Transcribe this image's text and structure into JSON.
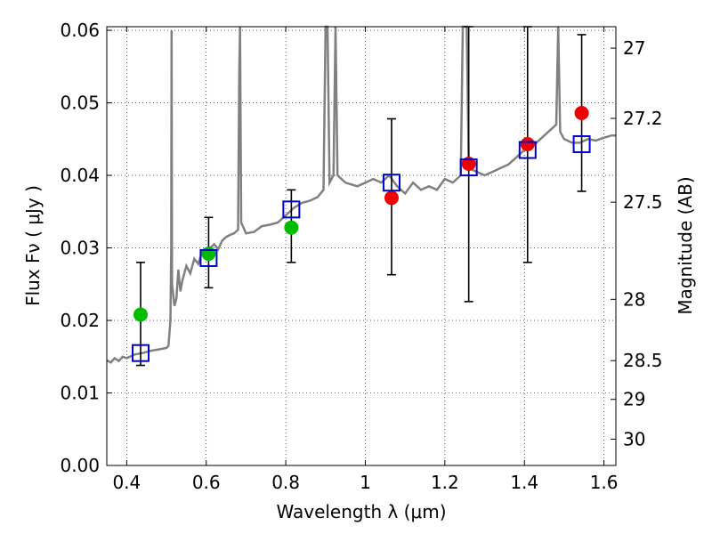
{
  "chart_data": {
    "type": "scatter",
    "xlabel": "Wavelength  λ (μm)",
    "ylabel_left": "Flux  Fν  ( μJy )",
    "ylabel_right": "Magnitude (AB)",
    "xlim": [
      0.35,
      1.63
    ],
    "ylim": [
      0.0,
      0.0605
    ],
    "grid": true,
    "x_ticks": [
      {
        "v": 0.4,
        "label": "0.4"
      },
      {
        "v": 0.6,
        "label": "0.6"
      },
      {
        "v": 0.8,
        "label": "0.8"
      },
      {
        "v": 1.0,
        "label": "1"
      },
      {
        "v": 1.2,
        "label": "1.2"
      },
      {
        "v": 1.4,
        "label": "1.4"
      },
      {
        "v": 1.6,
        "label": "1.6"
      }
    ],
    "y_ticks": [
      {
        "v": 0.0,
        "label": "0.00"
      },
      {
        "v": 0.01,
        "label": "0.01"
      },
      {
        "v": 0.02,
        "label": "0.02"
      },
      {
        "v": 0.03,
        "label": "0.03"
      },
      {
        "v": 0.04,
        "label": "0.04"
      },
      {
        "v": 0.05,
        "label": "0.05"
      },
      {
        "v": 0.06,
        "label": "0.06"
      }
    ],
    "right_ticks": [
      {
        "v": 27,
        "label": "27"
      },
      {
        "v": 27.2,
        "label": "27.2"
      },
      {
        "v": 27.5,
        "label": "27.5"
      },
      {
        "v": 28,
        "label": "28"
      },
      {
        "v": 28.5,
        "label": "28.5"
      },
      {
        "v": 29,
        "label": "29"
      },
      {
        "v": 30,
        "label": "30"
      }
    ],
    "observed_points": [
      {
        "x": 0.435,
        "y": 0.0208,
        "yerr_low": 0.0138,
        "yerr_high": 0.028,
        "color": "#00bb00"
      },
      {
        "x": 0.606,
        "y": 0.0292,
        "yerr_low": 0.0245,
        "yerr_high": 0.0342,
        "color": "#00bb00"
      },
      {
        "x": 0.814,
        "y": 0.0328,
        "yerr_low": 0.028,
        "yerr_high": 0.038,
        "color": "#00bb00"
      },
      {
        "x": 1.066,
        "y": 0.0369,
        "yerr_low": 0.0263,
        "yerr_high": 0.0478,
        "color": "#ee0000"
      },
      {
        "x": 1.26,
        "y": 0.0416,
        "yerr_low": 0.0226,
        "yerr_high": 0.0605,
        "color": "#ee0000"
      },
      {
        "x": 1.408,
        "y": 0.0443,
        "yerr_low": 0.028,
        "yerr_high": 0.0605,
        "color": "#ee0000"
      },
      {
        "x": 1.544,
        "y": 0.0486,
        "yerr_low": 0.0378,
        "yerr_high": 0.0594,
        "color": "#ee0000"
      }
    ],
    "model_points": [
      {
        "x": 0.435,
        "y": 0.0155
      },
      {
        "x": 0.606,
        "y": 0.0286
      },
      {
        "x": 0.814,
        "y": 0.0353
      },
      {
        "x": 1.066,
        "y": 0.039
      },
      {
        "x": 1.26,
        "y": 0.0411
      },
      {
        "x": 1.408,
        "y": 0.0435
      },
      {
        "x": 1.544,
        "y": 0.0443
      }
    ],
    "model_spectrum": [
      [
        0.35,
        0.0145
      ],
      [
        0.36,
        0.0142
      ],
      [
        0.37,
        0.0148
      ],
      [
        0.38,
        0.0144
      ],
      [
        0.39,
        0.015
      ],
      [
        0.4,
        0.0148
      ],
      [
        0.42,
        0.0153
      ],
      [
        0.44,
        0.0155
      ],
      [
        0.46,
        0.0158
      ],
      [
        0.48,
        0.016
      ],
      [
        0.5,
        0.0162
      ],
      [
        0.505,
        0.0165
      ],
      [
        0.51,
        0.02
      ],
      [
        0.512,
        0.03
      ],
      [
        0.513,
        0.06
      ],
      [
        0.514,
        0.025
      ],
      [
        0.52,
        0.022
      ],
      [
        0.525,
        0.023
      ],
      [
        0.53,
        0.027
      ],
      [
        0.535,
        0.024
      ],
      [
        0.54,
        0.0255
      ],
      [
        0.55,
        0.0275
      ],
      [
        0.56,
        0.0265
      ],
      [
        0.57,
        0.0285
      ],
      [
        0.58,
        0.0278
      ],
      [
        0.59,
        0.0295
      ],
      [
        0.6,
        0.029
      ],
      [
        0.61,
        0.03
      ],
      [
        0.62,
        0.0305
      ],
      [
        0.63,
        0.0298
      ],
      [
        0.64,
        0.031
      ],
      [
        0.65,
        0.0315
      ],
      [
        0.66,
        0.0318
      ],
      [
        0.67,
        0.032
      ],
      [
        0.68,
        0.0325
      ],
      [
        0.683,
        0.054
      ],
      [
        0.685,
        0.0605
      ],
      [
        0.688,
        0.0335
      ],
      [
        0.7,
        0.032
      ],
      [
        0.72,
        0.0322
      ],
      [
        0.74,
        0.033
      ],
      [
        0.76,
        0.0332
      ],
      [
        0.78,
        0.0335
      ],
      [
        0.8,
        0.0345
      ],
      [
        0.82,
        0.0355
      ],
      [
        0.84,
        0.0362
      ],
      [
        0.86,
        0.0365
      ],
      [
        0.88,
        0.037
      ],
      [
        0.895,
        0.038
      ],
      [
        0.9,
        0.0605
      ],
      [
        0.905,
        0.0605
      ],
      [
        0.91,
        0.039
      ],
      [
        0.92,
        0.04
      ],
      [
        0.925,
        0.0605
      ],
      [
        0.93,
        0.04
      ],
      [
        0.95,
        0.039
      ],
      [
        0.98,
        0.0385
      ],
      [
        1.0,
        0.039
      ],
      [
        1.02,
        0.0395
      ],
      [
        1.04,
        0.039
      ],
      [
        1.06,
        0.04
      ],
      [
        1.08,
        0.0385
      ],
      [
        1.1,
        0.0375
      ],
      [
        1.12,
        0.039
      ],
      [
        1.14,
        0.038
      ],
      [
        1.16,
        0.0385
      ],
      [
        1.18,
        0.038
      ],
      [
        1.2,
        0.0395
      ],
      [
        1.22,
        0.039
      ],
      [
        1.24,
        0.04
      ],
      [
        1.245,
        0.0605
      ],
      [
        1.255,
        0.0605
      ],
      [
        1.26,
        0.041
      ],
      [
        1.28,
        0.0405
      ],
      [
        1.3,
        0.04
      ],
      [
        1.32,
        0.0405
      ],
      [
        1.34,
        0.041
      ],
      [
        1.36,
        0.0415
      ],
      [
        1.38,
        0.0425
      ],
      [
        1.4,
        0.0435
      ],
      [
        1.42,
        0.044
      ],
      [
        1.44,
        0.045
      ],
      [
        1.46,
        0.046
      ],
      [
        1.48,
        0.047
      ],
      [
        1.485,
        0.0605
      ],
      [
        1.49,
        0.046
      ],
      [
        1.5,
        0.045
      ],
      [
        1.52,
        0.0445
      ],
      [
        1.54,
        0.0445
      ],
      [
        1.56,
        0.045
      ],
      [
        1.58,
        0.0448
      ],
      [
        1.6,
        0.0452
      ],
      [
        1.62,
        0.0455
      ],
      [
        1.63,
        0.0455
      ]
    ],
    "colors": {
      "spectrum": "#808080",
      "model_box": "#0000cc",
      "errorbar": "#000000"
    }
  }
}
